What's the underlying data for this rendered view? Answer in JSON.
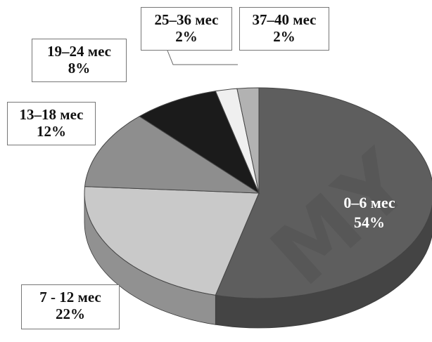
{
  "chart_data": {
    "type": "pie",
    "style": "3d",
    "slices": [
      {
        "label": "0–6 мес",
        "percent_label": "54%",
        "value": 54,
        "color": "#5e5e5e"
      },
      {
        "label": "7 - 12 мес",
        "percent_label": "22%",
        "value": 22,
        "color": "#c9c9c9"
      },
      {
        "label": "13–18 мес",
        "percent_label": "12%",
        "value": 12,
        "color": "#8e8e8e"
      },
      {
        "label": "19–24 мес",
        "percent_label": "8%",
        "value": 8,
        "color": "#1b1b1b"
      },
      {
        "label": "25–36 мес",
        "percent_label": "2%",
        "value": 2,
        "color": "#efefef"
      },
      {
        "label": "37–40 мес",
        "percent_label": "2%",
        "value": 2,
        "color": "#b2b2b2"
      }
    ]
  },
  "watermark": "MY"
}
